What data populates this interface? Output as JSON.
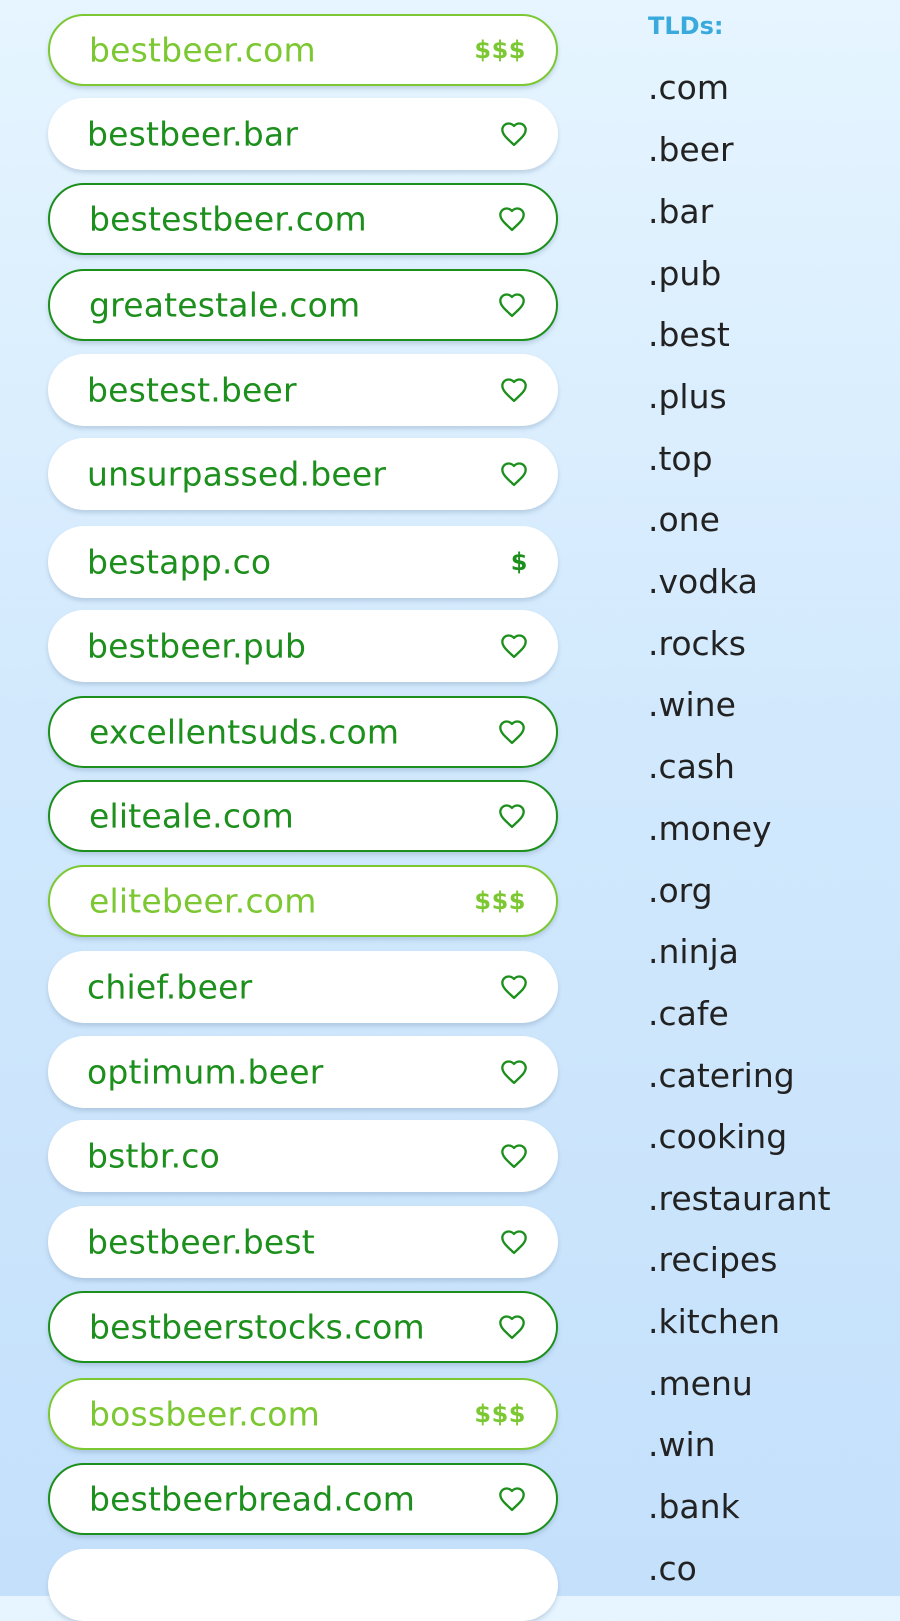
{
  "domains": [
    {
      "name": "bestbeer.com",
      "style": "premium",
      "action": "price",
      "price": "$$$"
    },
    {
      "name": "bestbeer.bar",
      "style": "plain",
      "action": "heart",
      "price": ""
    },
    {
      "name": "bestestbeer.com",
      "style": "available",
      "action": "heart",
      "price": ""
    },
    {
      "name": "greatestale.com",
      "style": "available",
      "action": "heart",
      "price": ""
    },
    {
      "name": "bestest.beer",
      "style": "plain",
      "action": "heart",
      "price": ""
    },
    {
      "name": "unsurpassed.beer",
      "style": "plain",
      "action": "heart",
      "price": ""
    },
    {
      "name": "bestapp.co",
      "style": "plain",
      "action": "price",
      "price": "$"
    },
    {
      "name": "bestbeer.pub",
      "style": "plain",
      "action": "heart",
      "price": ""
    },
    {
      "name": "excellentsuds.com",
      "style": "available",
      "action": "heart",
      "price": ""
    },
    {
      "name": "eliteale.com",
      "style": "available",
      "action": "heart",
      "price": ""
    },
    {
      "name": "elitebeer.com",
      "style": "premium",
      "action": "price",
      "price": "$$$"
    },
    {
      "name": "chief.beer",
      "style": "plain",
      "action": "heart",
      "price": ""
    },
    {
      "name": "optimum.beer",
      "style": "plain",
      "action": "heart",
      "price": ""
    },
    {
      "name": "bstbr.co",
      "style": "plain",
      "action": "heart",
      "price": ""
    },
    {
      "name": "bestbeer.best",
      "style": "plain",
      "action": "heart",
      "price": ""
    },
    {
      "name": "bestbeerstocks.com",
      "style": "available",
      "action": "heart",
      "price": ""
    },
    {
      "name": "bossbeer.com",
      "style": "premium",
      "action": "price",
      "price": "$$$"
    },
    {
      "name": "bestbeerbread.com",
      "style": "available",
      "action": "heart",
      "price": ""
    },
    {
      "name": "",
      "style": "plain",
      "action": "none",
      "price": ""
    }
  ],
  "tld_panel": {
    "heading": "TLDs:",
    "items": [
      ".com",
      ".beer",
      ".bar",
      ".pub",
      ".best",
      ".plus",
      ".top",
      ".one",
      ".vodka",
      ".rocks",
      ".wine",
      ".cash",
      ".money",
      ".org",
      ".ninja",
      ".cafe",
      ".catering",
      ".cooking",
      ".restaurant",
      ".recipes",
      ".kitchen",
      ".menu",
      ".win",
      ".bank",
      ".co"
    ]
  },
  "colors": {
    "available": "#1c8f1c",
    "premium": "#7cc832",
    "heading": "#3aa9dc",
    "tld_text": "#222222"
  },
  "icons": {
    "favorite": "heart-icon"
  }
}
